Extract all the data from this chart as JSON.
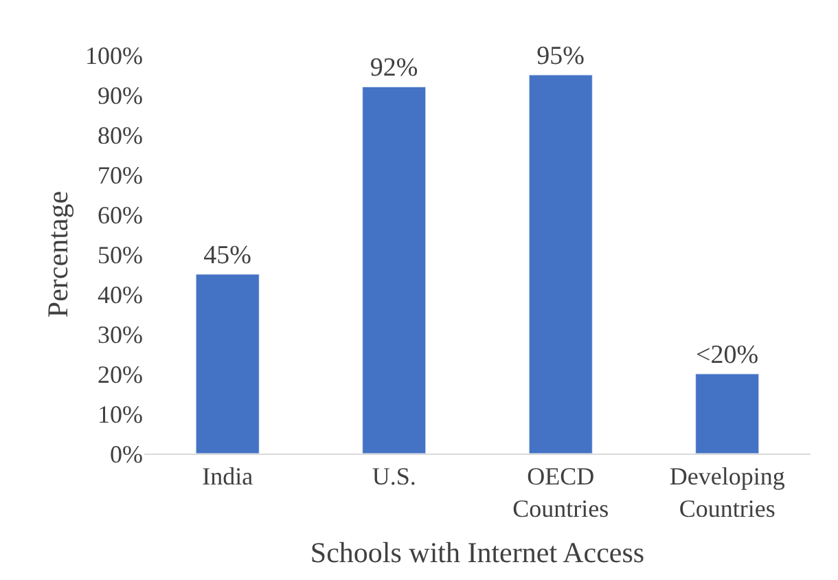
{
  "chart_data": {
    "type": "bar",
    "categories": [
      "India",
      "U.S.",
      "OECD Countries",
      "Developing Countries"
    ],
    "values": [
      45,
      92,
      95,
      20
    ],
    "value_labels": [
      "45%",
      "92%",
      "95%",
      "<20%"
    ],
    "color": "#4472c4",
    "xlabel": "Schools with Internet Access",
    "ylabel": "Percentage",
    "ylim": [
      0,
      100
    ],
    "yticks": [
      {
        "value": 0,
        "label": "0%"
      },
      {
        "value": 10,
        "label": "10%"
      },
      {
        "value": 20,
        "label": "20%"
      },
      {
        "value": 30,
        "label": "30%"
      },
      {
        "value": 40,
        "label": "40%"
      },
      {
        "value": 50,
        "label": "50%"
      },
      {
        "value": 60,
        "label": "60%"
      },
      {
        "value": 70,
        "label": "70%"
      },
      {
        "value": 80,
        "label": "80%"
      },
      {
        "value": 90,
        "label": "90%"
      },
      {
        "value": 100,
        "label": "100%"
      }
    ],
    "grid": false
  }
}
